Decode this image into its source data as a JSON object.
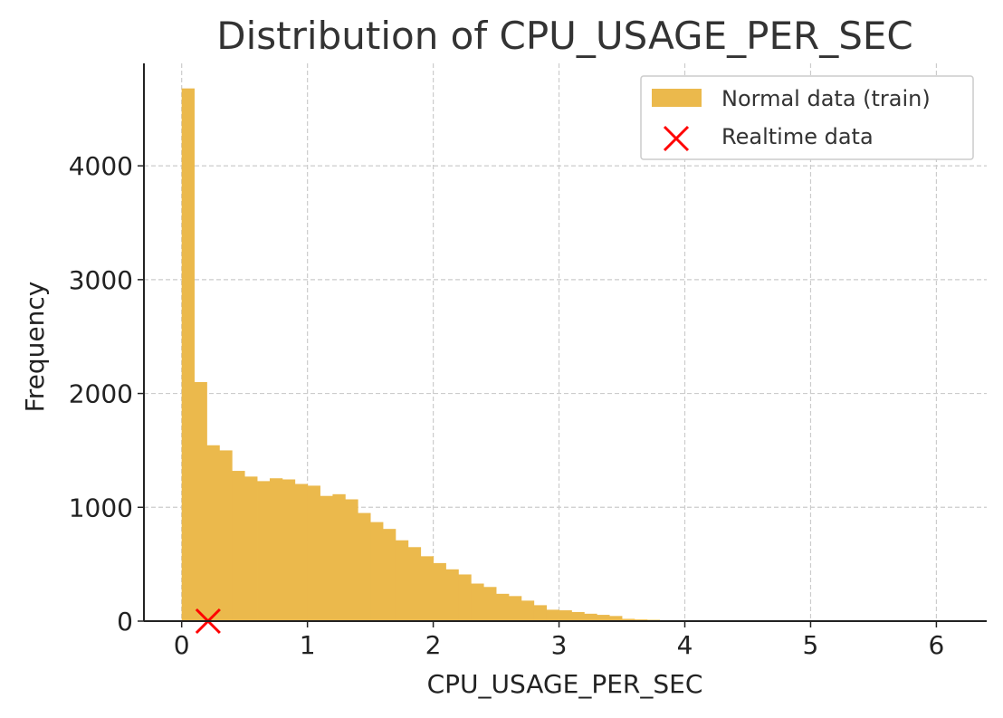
{
  "chart_data": {
    "type": "bar",
    "title": "Distribution of CPU_USAGE_PER_SEC",
    "xlabel": "CPU_USAGE_PER_SEC",
    "ylabel": "Frequency",
    "xlim": [
      -0.3,
      6.4
    ],
    "ylim": [
      0,
      4900
    ],
    "xticks": [
      0,
      1,
      2,
      3,
      4,
      5,
      6
    ],
    "yticks": [
      0,
      1000,
      2000,
      3000,
      4000
    ],
    "grid": true,
    "legend_position": "top-right",
    "bin_width": 0.1,
    "series": [
      {
        "name": "Normal data (train)",
        "type": "histogram",
        "color": "#EBB94C",
        "bins_start": [
          0.0,
          0.1,
          0.2,
          0.3,
          0.4,
          0.5,
          0.6,
          0.7,
          0.8,
          0.9,
          1.0,
          1.1,
          1.2,
          1.3,
          1.4,
          1.5,
          1.6,
          1.7,
          1.8,
          1.9,
          2.0,
          2.1,
          2.2,
          2.3,
          2.4,
          2.5,
          2.6,
          2.7,
          2.8,
          2.9,
          3.0,
          3.1,
          3.2,
          3.3,
          3.4,
          3.5,
          3.6,
          3.7,
          3.8,
          3.9,
          4.0,
          4.1,
          4.2,
          4.3,
          4.4,
          4.5
        ],
        "values": [
          4680,
          2100,
          1545,
          1500,
          1320,
          1270,
          1230,
          1255,
          1245,
          1205,
          1190,
          1100,
          1115,
          1070,
          950,
          870,
          810,
          710,
          650,
          570,
          510,
          455,
          410,
          330,
          300,
          240,
          220,
          180,
          140,
          100,
          95,
          80,
          65,
          55,
          45,
          20,
          15,
          12,
          8,
          5,
          3,
          2,
          1,
          1,
          1,
          1
        ]
      },
      {
        "name": "Realtime data",
        "type": "scatter",
        "marker": "x",
        "color": "#FF0000",
        "points": [
          [
            0.21,
            0
          ]
        ]
      }
    ]
  }
}
